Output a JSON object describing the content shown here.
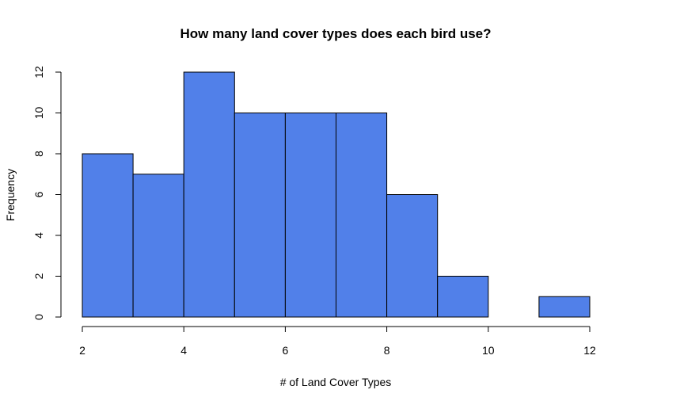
{
  "chart_data": {
    "type": "bar",
    "title": "How many land cover types does each bird use?",
    "xlabel": "# of Land Cover Types",
    "ylabel": "Frequency",
    "bins": [
      {
        "x0": 2,
        "x1": 3,
        "count": 8
      },
      {
        "x0": 3,
        "x1": 4,
        "count": 7
      },
      {
        "x0": 4,
        "x1": 5,
        "count": 12
      },
      {
        "x0": 5,
        "x1": 6,
        "count": 10
      },
      {
        "x0": 6,
        "x1": 7,
        "count": 10
      },
      {
        "x0": 7,
        "x1": 8,
        "count": 10
      },
      {
        "x0": 8,
        "x1": 9,
        "count": 6
      },
      {
        "x0": 9,
        "x1": 10,
        "count": 2
      },
      {
        "x0": 10,
        "x1": 11,
        "count": 0
      },
      {
        "x0": 11,
        "x1": 12,
        "count": 1
      }
    ],
    "xlim": [
      2,
      12
    ],
    "ylim": [
      0,
      12
    ],
    "xticks": [
      2,
      4,
      6,
      8,
      10,
      12
    ],
    "yticks": [
      0,
      2,
      4,
      6,
      8,
      10,
      12
    ],
    "bar_color": "#5180E9",
    "grid": false
  }
}
